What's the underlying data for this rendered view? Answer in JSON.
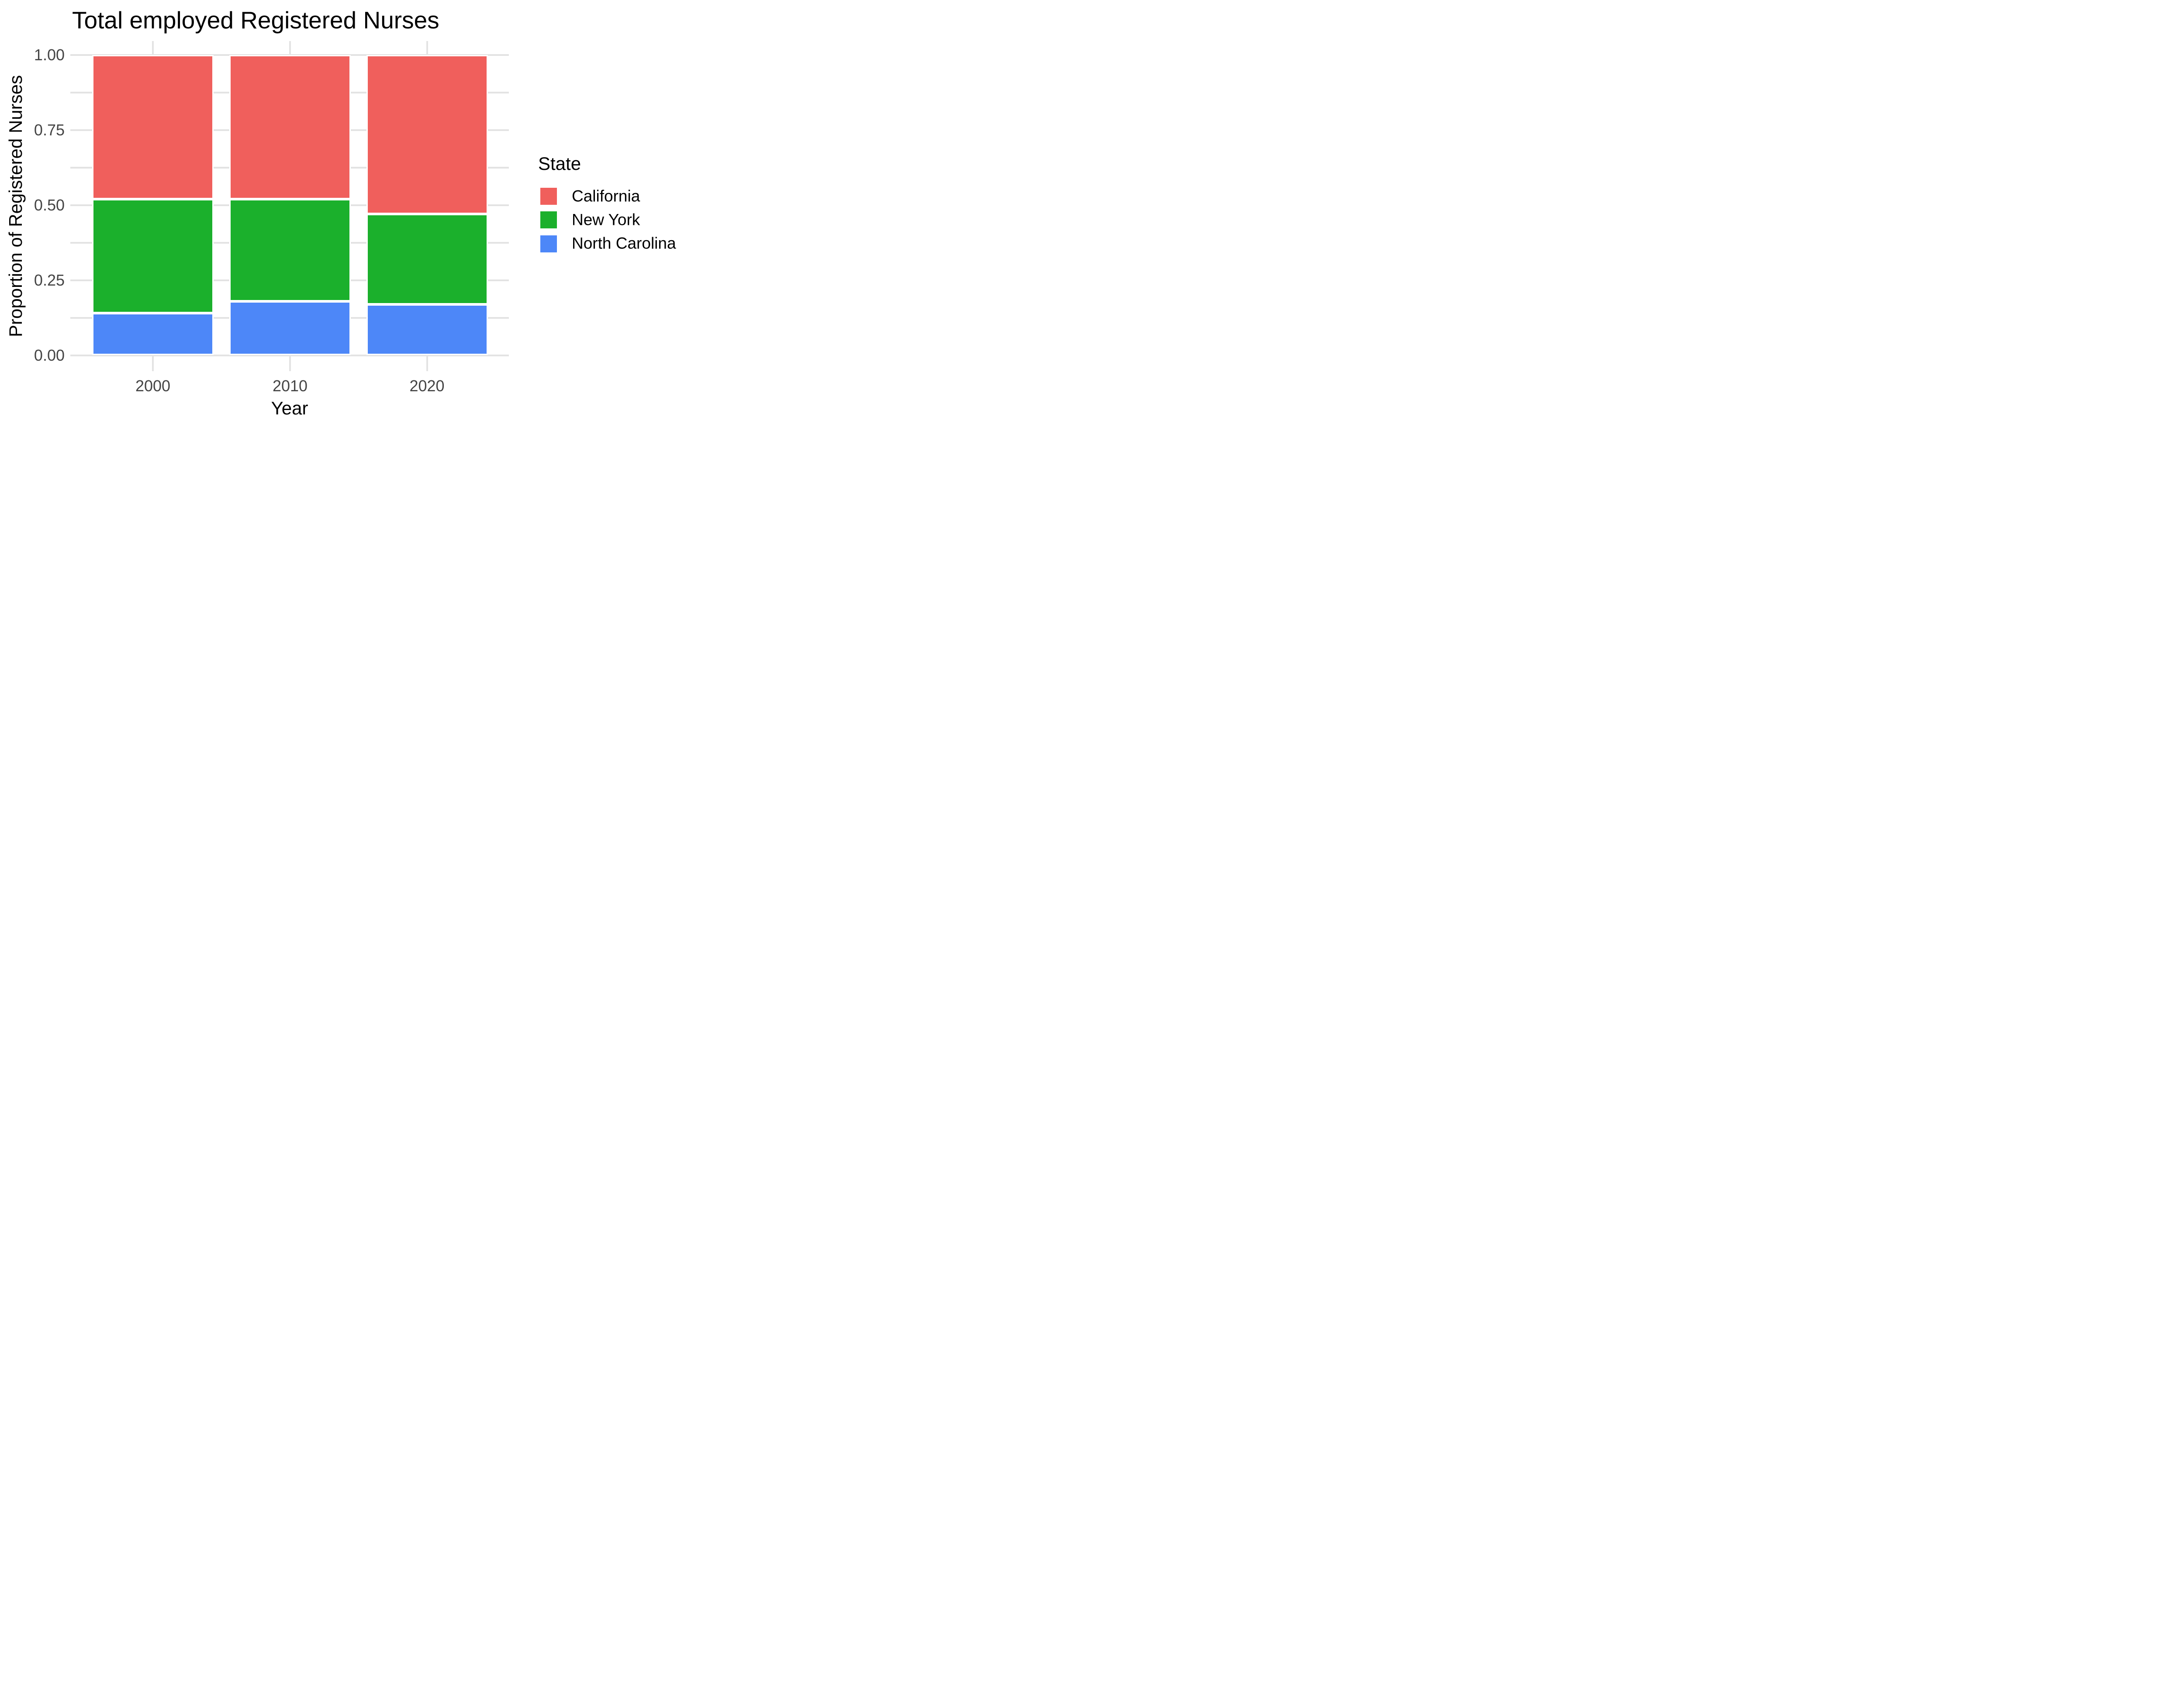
{
  "title": "Total employed Registered Nurses",
  "axes": {
    "x": {
      "title": "Year",
      "tick_labels": [
        "2000",
        "2010",
        "2020"
      ]
    },
    "y": {
      "title": "Proportion of Registered Nurses",
      "tick_labels": [
        "1.00",
        "0.75",
        "0.50",
        "0.25",
        "0.00"
      ]
    }
  },
  "legend": {
    "title": "State",
    "entries": [
      {
        "label": "California",
        "color": "#F05F5C"
      },
      {
        "label": "New York",
        "color": "#1BB02C"
      },
      {
        "label": "North Carolina",
        "color": "#4D87F8"
      }
    ]
  },
  "style": {
    "background_color": "#FFFFFF",
    "gridline_color": "#E3E3E3",
    "bar_stroke_color": "#FFFFFF",
    "tick_label_color": "#454545",
    "title_color": "#000000"
  },
  "chart_data": {
    "type": "bar",
    "stacked": true,
    "title": "Total employed Registered Nurses",
    "xlabel": "Year",
    "ylabel": "Proportion of Registered Nurses",
    "categories": [
      "2000",
      "2010",
      "2020"
    ],
    "series": [
      {
        "name": "California",
        "color": "#F05F5C",
        "values": [
          0.48,
          0.48,
          0.53
        ]
      },
      {
        "name": "New York",
        "color": "#1BB02C",
        "values": [
          0.38,
          0.34,
          0.3
        ]
      },
      {
        "name": "North Carolina",
        "color": "#4D87F8",
        "values": [
          0.14,
          0.18,
          0.17
        ]
      }
    ],
    "stack_order_bottom_to_top": [
      "North Carolina",
      "New York",
      "California"
    ],
    "ylim": [
      0,
      1
    ],
    "y_major_ticks": [
      1.0,
      0.75,
      0.5,
      0.25,
      0.0
    ],
    "y_minor_step": 0.125,
    "grid": "on",
    "legend_position": "right"
  }
}
